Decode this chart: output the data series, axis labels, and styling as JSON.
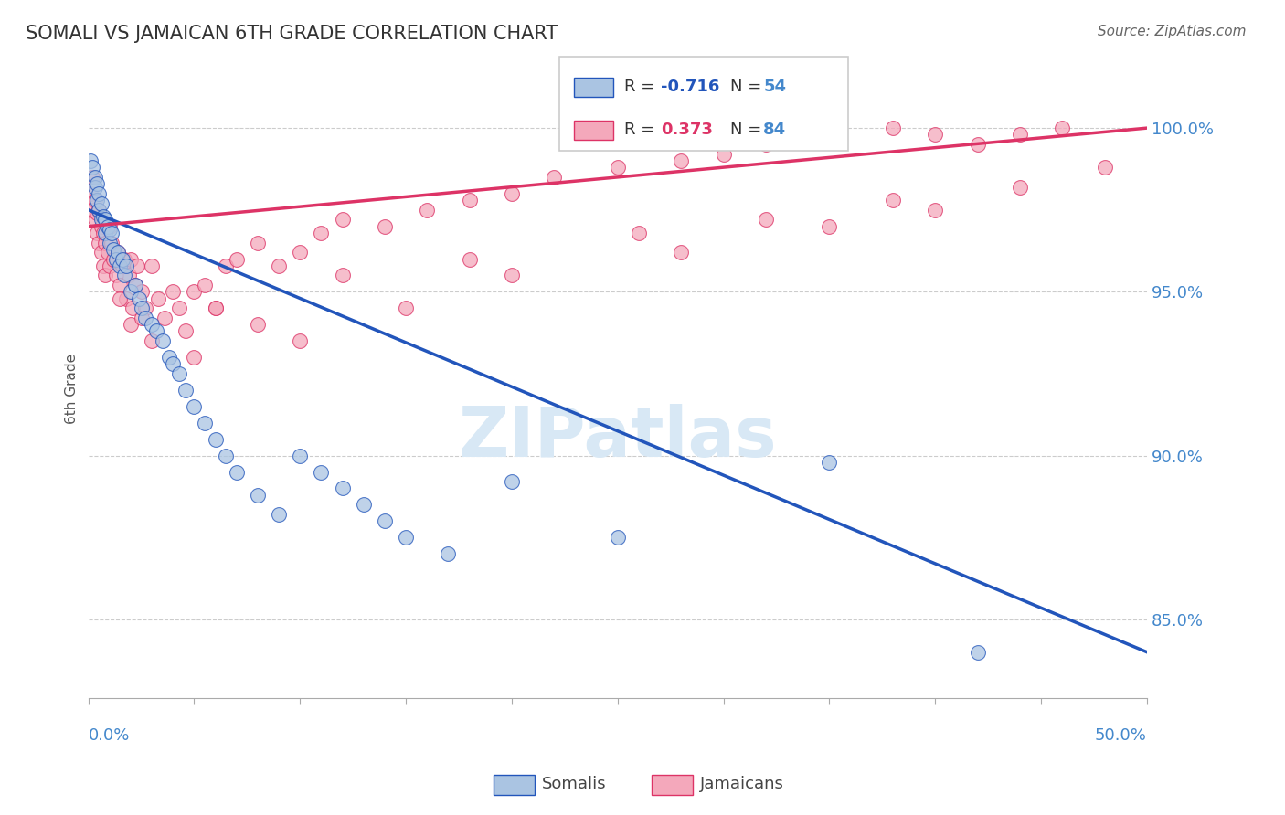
{
  "title": "SOMALI VS JAMAICAN 6TH GRADE CORRELATION CHART",
  "source": "Source: ZipAtlas.com",
  "ylabel": "6th Grade",
  "ytick_labels": [
    "100.0%",
    "95.0%",
    "90.0%",
    "85.0%"
  ],
  "ytick_values": [
    1.0,
    0.95,
    0.9,
    0.85
  ],
  "xrange": [
    0.0,
    0.5
  ],
  "yrange": [
    0.826,
    1.015
  ],
  "somali_R": -0.716,
  "somali_N": 54,
  "jamaican_R": 0.373,
  "jamaican_N": 84,
  "somali_color": "#aac4e2",
  "jamaican_color": "#f4a8bb",
  "somali_line_color": "#2255bb",
  "jamaican_line_color": "#dd3366",
  "watermark_color": "#d8e8f5",
  "title_color": "#333333",
  "axis_label_color": "#4488cc",
  "somali_x": [
    0.001,
    0.002,
    0.003,
    0.003,
    0.004,
    0.004,
    0.005,
    0.005,
    0.006,
    0.006,
    0.007,
    0.008,
    0.008,
    0.009,
    0.01,
    0.01,
    0.011,
    0.012,
    0.013,
    0.014,
    0.015,
    0.016,
    0.017,
    0.018,
    0.02,
    0.022,
    0.024,
    0.025,
    0.027,
    0.03,
    0.032,
    0.035,
    0.038,
    0.04,
    0.043,
    0.046,
    0.05,
    0.055,
    0.06,
    0.065,
    0.07,
    0.08,
    0.09,
    0.1,
    0.11,
    0.12,
    0.13,
    0.14,
    0.15,
    0.17,
    0.2,
    0.25,
    0.35,
    0.42
  ],
  "somali_y": [
    0.99,
    0.988,
    0.985,
    0.982,
    0.983,
    0.978,
    0.98,
    0.975,
    0.977,
    0.972,
    0.973,
    0.972,
    0.968,
    0.97,
    0.969,
    0.965,
    0.968,
    0.963,
    0.96,
    0.962,
    0.958,
    0.96,
    0.955,
    0.958,
    0.95,
    0.952,
    0.948,
    0.945,
    0.942,
    0.94,
    0.938,
    0.935,
    0.93,
    0.928,
    0.925,
    0.92,
    0.915,
    0.91,
    0.905,
    0.9,
    0.895,
    0.888,
    0.882,
    0.9,
    0.895,
    0.89,
    0.885,
    0.88,
    0.875,
    0.87,
    0.892,
    0.875,
    0.898,
    0.84
  ],
  "jamaican_x": [
    0.001,
    0.002,
    0.002,
    0.003,
    0.003,
    0.004,
    0.004,
    0.005,
    0.005,
    0.006,
    0.006,
    0.007,
    0.007,
    0.008,
    0.008,
    0.009,
    0.01,
    0.01,
    0.011,
    0.012,
    0.013,
    0.014,
    0.015,
    0.016,
    0.017,
    0.018,
    0.019,
    0.02,
    0.021,
    0.022,
    0.023,
    0.025,
    0.027,
    0.03,
    0.033,
    0.036,
    0.04,
    0.043,
    0.046,
    0.05,
    0.055,
    0.06,
    0.065,
    0.07,
    0.08,
    0.09,
    0.1,
    0.11,
    0.12,
    0.14,
    0.16,
    0.18,
    0.2,
    0.22,
    0.25,
    0.28,
    0.3,
    0.32,
    0.35,
    0.38,
    0.4,
    0.42,
    0.44,
    0.46,
    0.02,
    0.03,
    0.05,
    0.08,
    0.1,
    0.15,
    0.2,
    0.28,
    0.35,
    0.4,
    0.015,
    0.025,
    0.06,
    0.12,
    0.18,
    0.26,
    0.32,
    0.38,
    0.44,
    0.48
  ],
  "jamaican_y": [
    0.98,
    0.975,
    0.985,
    0.972,
    0.978,
    0.968,
    0.974,
    0.975,
    0.965,
    0.97,
    0.962,
    0.968,
    0.958,
    0.965,
    0.955,
    0.962,
    0.97,
    0.958,
    0.965,
    0.96,
    0.955,
    0.962,
    0.952,
    0.958,
    0.96,
    0.948,
    0.955,
    0.96,
    0.945,
    0.952,
    0.958,
    0.95,
    0.945,
    0.958,
    0.948,
    0.942,
    0.95,
    0.945,
    0.938,
    0.95,
    0.952,
    0.945,
    0.958,
    0.96,
    0.965,
    0.958,
    0.962,
    0.968,
    0.972,
    0.97,
    0.975,
    0.978,
    0.98,
    0.985,
    0.988,
    0.99,
    0.992,
    0.995,
    0.998,
    1.0,
    0.998,
    0.995,
    0.998,
    1.0,
    0.94,
    0.935,
    0.93,
    0.94,
    0.935,
    0.945,
    0.955,
    0.962,
    0.97,
    0.975,
    0.948,
    0.942,
    0.945,
    0.955,
    0.96,
    0.968,
    0.972,
    0.978,
    0.982,
    0.988
  ]
}
